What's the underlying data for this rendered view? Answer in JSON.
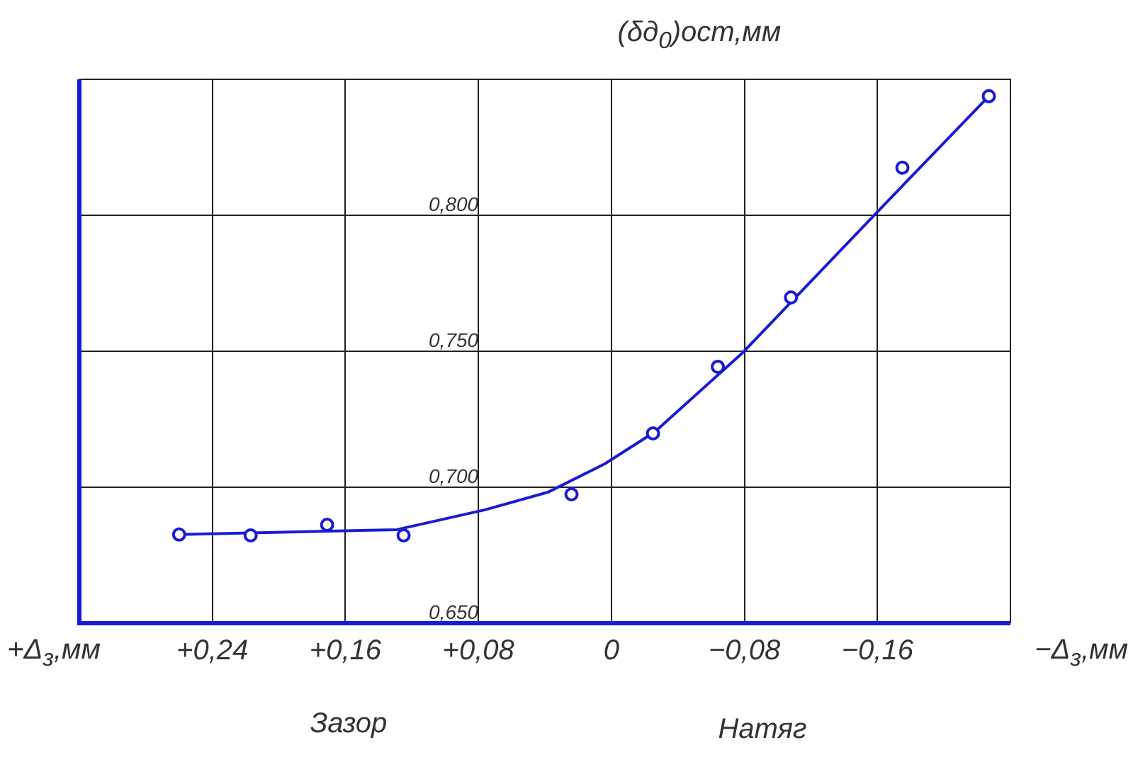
{
  "chart_data": {
    "type": "scatter",
    "ylabel": "(δд$_{0}$)ост,мм",
    "xlim": [
      0.32,
      -0.24
    ],
    "xticks": [
      {
        "value": 0.24,
        "label": "+0,24"
      },
      {
        "value": 0.16,
        "label": "+0,16"
      },
      {
        "value": 0.08,
        "label": "+0,08"
      },
      {
        "value": 0,
        "label": "0"
      },
      {
        "value": -0.08,
        "label": "−0,08"
      },
      {
        "value": -0.16,
        "label": "−0,16"
      }
    ],
    "ylim": [
      0.65,
      0.85
    ],
    "yticks": [
      {
        "value": 0.65,
        "label": "0,650"
      },
      {
        "value": 0.7,
        "label": "0,700"
      },
      {
        "value": 0.75,
        "label": "0,750"
      },
      {
        "value": 0.8,
        "label": "0,800"
      },
      {
        "value": 0.85,
        "label": null
      }
    ],
    "grid": true,
    "legend": false,
    "series": [
      {
        "color": "#1a1ad6",
        "marker": "circle",
        "x": [
          0.26,
          0.217,
          0.171,
          0.125,
          0.024,
          -0.025,
          -0.064,
          -0.108,
          -0.175,
          -0.227
        ],
        "values": [
          0.6826,
          0.6823,
          0.6862,
          0.6823,
          0.6974,
          0.7198,
          0.7443,
          0.7698,
          0.8175,
          0.8438
        ]
      },
      {
        "type": "line",
        "color": "#1a1ad6",
        "marker": "none",
        "line_style": "solid",
        "x": [
          0.26,
          0.129,
          0.076,
          0.038,
          0.004,
          -0.026,
          -0.079,
          -0.16,
          -0.227
        ],
        "values": [
          0.6826,
          0.6844,
          0.6917,
          0.6982,
          0.7086,
          0.7203,
          0.7495,
          0.8013,
          0.8438
        ]
      }
    ],
    "annotations": [
      "+Δ$_{з}$,мм",
      "−Δ$_{з}$,мм",
      "Зазор",
      "Натяг"
    ]
  }
}
